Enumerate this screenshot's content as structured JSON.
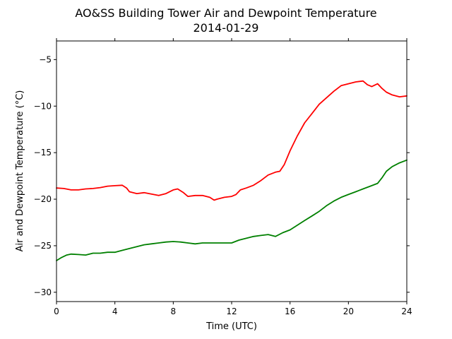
{
  "chart_data": {
    "type": "line",
    "title": "AO&SS Building Tower Air and Dewpoint Temperature",
    "subtitle": "2014-01-29",
    "xlabel": "Time (UTC)",
    "ylabel": "Air and Dewpoint Temperature (°C)",
    "xlim": [
      0,
      24
    ],
    "ylim": [
      -31,
      -3
    ],
    "xticks": [
      0,
      4,
      8,
      12,
      16,
      20,
      24
    ],
    "yticks": [
      -30,
      -25,
      -20,
      -15,
      -10,
      -5
    ],
    "grid": false,
    "legend": "none",
    "series": [
      {
        "color": "#ff0000",
        "x": [
          0,
          0.5,
          1,
          1.5,
          2,
          2.5,
          3,
          3.5,
          4,
          4.5,
          4.8,
          5,
          5.5,
          6,
          6.5,
          7,
          7.5,
          8,
          8.3,
          8.7,
          9,
          9.5,
          10,
          10.5,
          10.8,
          11,
          11.5,
          12,
          12.3,
          12.6,
          13,
          13.5,
          14,
          14.5,
          15,
          15.3,
          15.6,
          16,
          16.5,
          17,
          17.5,
          18,
          18.5,
          19,
          19.5,
          20,
          20.5,
          21,
          21.3,
          21.6,
          22,
          22.3,
          22.6,
          23,
          23.5,
          24
        ],
        "values": [
          -18.8,
          -18.85,
          -19.0,
          -19.0,
          -18.9,
          -18.85,
          -18.75,
          -18.6,
          -18.55,
          -18.5,
          -18.8,
          -19.2,
          -19.4,
          -19.3,
          -19.45,
          -19.6,
          -19.4,
          -19.0,
          -18.9,
          -19.3,
          -19.7,
          -19.6,
          -19.6,
          -19.8,
          -20.1,
          -20.0,
          -19.8,
          -19.7,
          -19.5,
          -19.0,
          -18.8,
          -18.5,
          -18.0,
          -17.4,
          -17.1,
          -17.0,
          -16.3,
          -14.8,
          -13.2,
          -11.8,
          -10.8,
          -9.8,
          -9.1,
          -8.4,
          -7.8,
          -7.6,
          -7.4,
          -7.3,
          -7.7,
          -7.9,
          -7.6,
          -8.1,
          -8.5,
          -8.8,
          -9.0,
          -8.9
        ]
      },
      {
        "color": "#008000",
        "x": [
          0,
          0.3,
          0.7,
          1,
          1.5,
          2,
          2.5,
          3,
          3.5,
          4,
          4.5,
          5,
          5.5,
          6,
          6.5,
          7,
          7.5,
          8,
          8.5,
          9,
          9.5,
          10,
          10.5,
          11,
          11.5,
          12,
          12.5,
          13,
          13.5,
          14,
          14.5,
          15,
          15.5,
          16,
          16.5,
          17,
          17.5,
          18,
          18.5,
          19,
          19.5,
          20,
          20.5,
          21,
          21.5,
          22,
          22.3,
          22.6,
          23,
          23.5,
          24
        ],
        "values": [
          -26.6,
          -26.3,
          -26.0,
          -25.9,
          -25.95,
          -26.0,
          -25.8,
          -25.8,
          -25.7,
          -25.7,
          -25.5,
          -25.3,
          -25.1,
          -24.9,
          -24.8,
          -24.7,
          -24.6,
          -24.55,
          -24.6,
          -24.7,
          -24.8,
          -24.7,
          -24.7,
          -24.7,
          -24.7,
          -24.7,
          -24.4,
          -24.2,
          -24.0,
          -23.9,
          -23.8,
          -24.0,
          -23.6,
          -23.3,
          -22.8,
          -22.3,
          -21.8,
          -21.3,
          -20.7,
          -20.2,
          -19.8,
          -19.5,
          -19.2,
          -18.9,
          -18.6,
          -18.3,
          -17.7,
          -17.0,
          -16.5,
          -16.1,
          -15.8
        ]
      }
    ]
  }
}
